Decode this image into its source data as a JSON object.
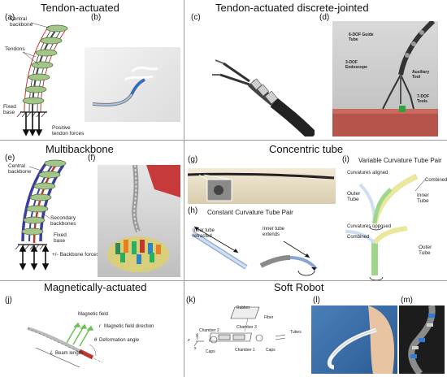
{
  "sections": {
    "tendon": {
      "title": "Tendon-actuated",
      "label_a": "(a)",
      "label_b": "(b)",
      "central_backbone": "Central backbone",
      "tendons": "Tendons",
      "fixed_base": "Fixed base",
      "positive_forces": "Positive tendon forces"
    },
    "discrete": {
      "title": "Tendon-actuated discrete-jointed",
      "label_c": "(c)",
      "label_d": "(d)",
      "guide_tube": "6-DOF Guide Tube",
      "endoscope": "3-DOF Endoscope",
      "aux_tool": "Auxiliary Tool",
      "tools": "7-DOF Tools"
    },
    "multibackbone": {
      "title": "Multibackbone",
      "label_e": "(e)",
      "label_f": "(f)",
      "central_backbone": "Central backbone",
      "secondary": "Secondary backbones",
      "fixed_base": "Fixed base",
      "forces": "+/- Backbone forces"
    },
    "concentric": {
      "title": "Concentric tube",
      "label_g": "(g)",
      "label_h": "(h)",
      "label_i": "(i)",
      "constant_title": "Constant Curvature Tube Pair",
      "variable_title": "Variable Curvature Tube Pair",
      "inner_retracted": "Inner tube retracted",
      "inner_extends": "Inner tube extends",
      "curv_aligned": "Curvatures aligned",
      "curv_opposed": "Curvatures opposed",
      "combined": "Combined",
      "outer_tube": "Outer Tube",
      "inner_tube": "Inner Tube"
    },
    "magnetic": {
      "title": "Magnetically-actuated",
      "label_j": "(j)",
      "field": "Magnetic field",
      "field_dir": "Magnetic field direction",
      "deform": "Deformation angle",
      "beam": "Beam length",
      "sym_r": "r",
      "sym_theta": "θ",
      "sym_l": "L"
    },
    "soft": {
      "title": "Soft Robot",
      "label_k": "(k)",
      "label_l": "(l)",
      "label_m": "(m)",
      "rubber": "Rubber",
      "fiber": "Fiber",
      "chamber1": "Chamber 1",
      "chamber2": "Chamber 2",
      "chamber3": "Chamber 3",
      "caps": "Caps",
      "tubes": "Tubes",
      "axis_x": "x",
      "axis_y": "y",
      "axis_z": "z"
    }
  },
  "colors": {
    "divider": "#9a9a9a",
    "disk": "#a4c58a",
    "tendon": "#c2372f",
    "secondary": "#3c3fa0",
    "inner_tube": "#cfdff0",
    "outer_tube": "#e9e89c",
    "green_tube": "#9ed68a"
  }
}
